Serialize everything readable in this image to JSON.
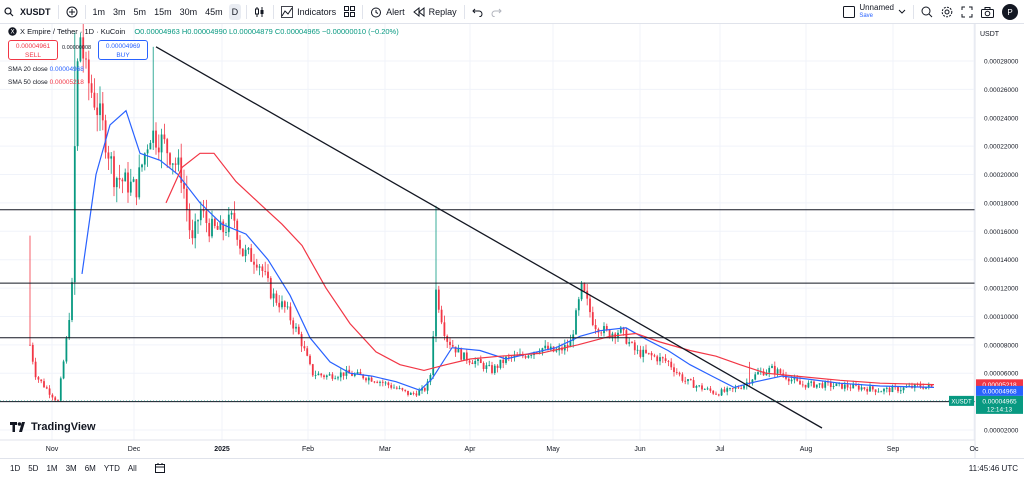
{
  "toolbar": {
    "symbol": "XUSDT",
    "timeframes": [
      "1m",
      "3m",
      "5m",
      "15m",
      "30m",
      "45m",
      "D"
    ],
    "indicators_label": "Indicators",
    "alert_label": "Alert",
    "replay_label": "Replay",
    "layout_name": "Unnamed",
    "layout_status": "Save",
    "avatar_letter": "P"
  },
  "legend": {
    "title": "X Empire / Tether · 1D · KuCoin",
    "ohlc": "O0.00004963 H0.00004990 L0.00004879 C0.00004965 −0.00000010 (−0.20%)",
    "sell_price": "0.00004961",
    "sell_label": "SELL",
    "spread": "0.00000008",
    "buy_price": "0.00004969",
    "buy_label": "BUY",
    "sma20_label": "SMA 20 close",
    "sma20_value": "0.00004968",
    "sma50_label": "SMA 50 close",
    "sma50_value": "0.00005218"
  },
  "colors": {
    "up": "#089981",
    "down": "#f23645",
    "sma20": "#2962ff",
    "sma50": "#f23645",
    "trendline": "#131722"
  },
  "axis": {
    "currency": "USDT",
    "y_ticks": [
      "0.00028000",
      "0.00026000",
      "0.00024000",
      "0.00022000",
      "0.00020000",
      "0.00018000",
      "0.00016000",
      "0.00014000",
      "0.00012000",
      "0.00010000",
      "0.00008000",
      "0.00006000",
      "0.00004000",
      "0.00002000"
    ],
    "x_ticks": [
      "Nov",
      "Dec",
      "2025",
      "Feb",
      "Mar",
      "Apr",
      "May",
      "Jun",
      "Jul",
      "Aug",
      "Sep",
      "Oc"
    ]
  },
  "levels": [
    {
      "price": "0.00017521"
    },
    {
      "price": "0.00012352"
    },
    {
      "price": "0.00008500"
    },
    {
      "price": "0.00004000"
    }
  ],
  "price_labels": {
    "sma50": "0.00005218",
    "sma20": "0.00004968",
    "symbol": "XUSDT",
    "last": "0.00004965",
    "countdown": "12:14:13"
  },
  "brand": "TradingView",
  "bottom": {
    "ranges": [
      "1D",
      "5D",
      "1M",
      "3M",
      "6M",
      "YTD",
      "All"
    ],
    "clock": "11:45:46 UTC"
  }
}
